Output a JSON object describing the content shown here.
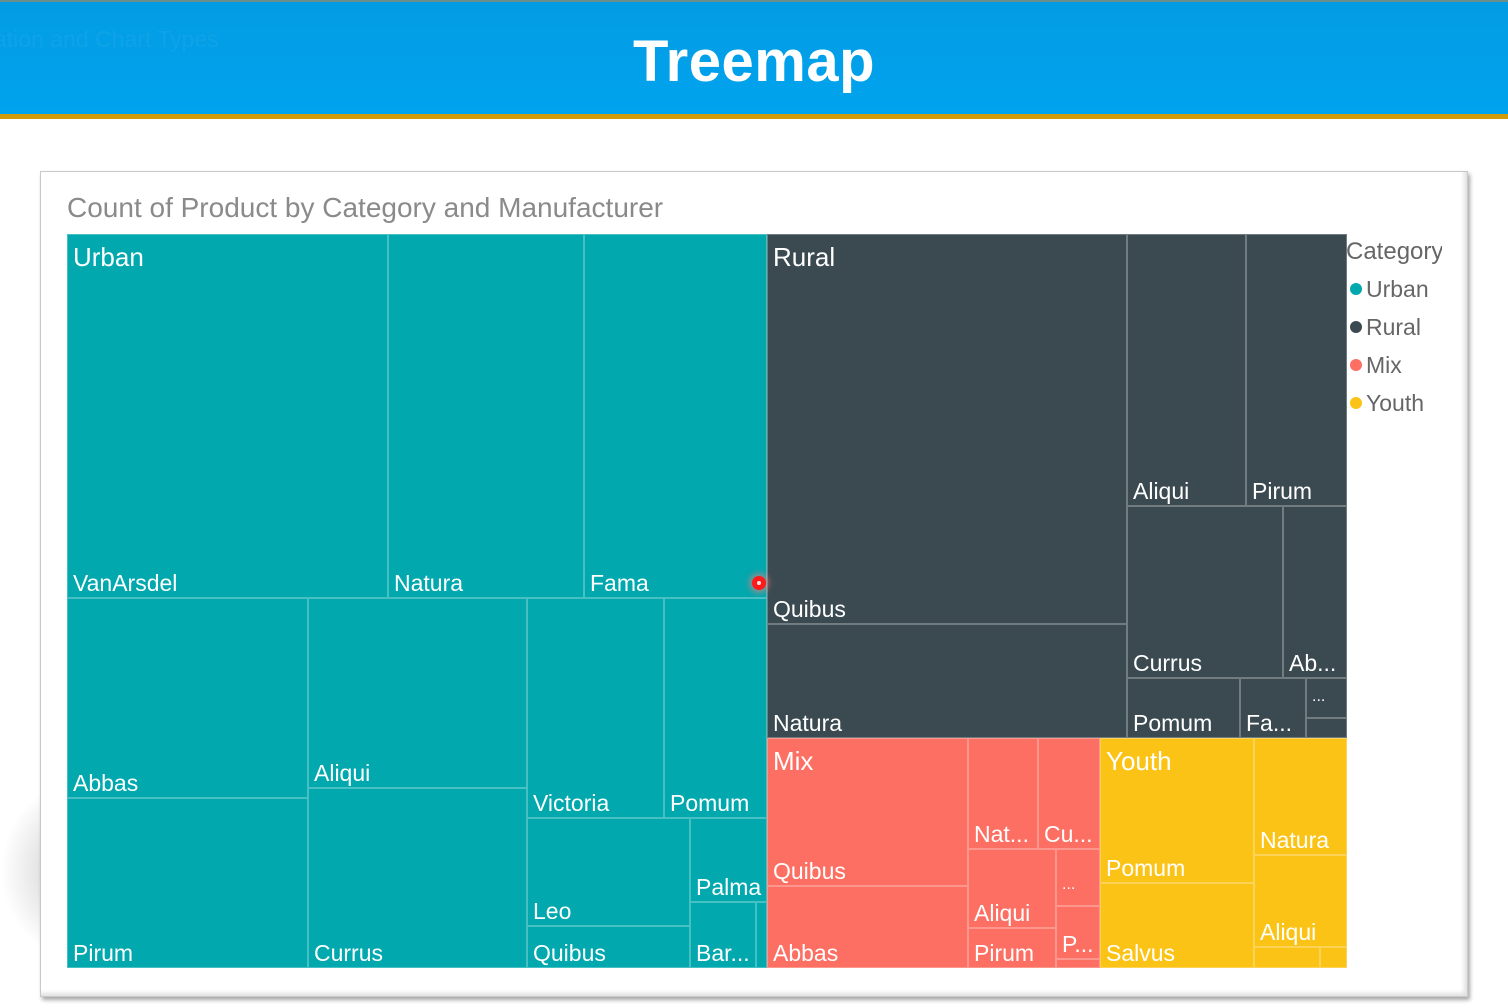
{
  "banner": {
    "title": "Treemap",
    "ghost_text": "ation and Chart Types"
  },
  "colors": {
    "banner": "#01a0e9",
    "banner_rule": "#d39a09",
    "Urban": "#01a8ae",
    "Rural": "#3b4a51",
    "Mix": "#fd6f62",
    "Youth": "#fcc317"
  },
  "chart_data": {
    "type": "treemap",
    "title": "Count of Product by Category and Manufacturer",
    "measure": "Count of Product",
    "group_field": "Category",
    "legend": {
      "title": "Category",
      "position": "right",
      "items": [
        "Urban",
        "Rural",
        "Mix",
        "Youth"
      ]
    },
    "groups": [
      {
        "name": "Urban",
        "children": [
          "VanArsdel",
          "Natura",
          "Fama",
          "Abbas",
          "Pirum",
          "Aliqui",
          "Currus",
          "Victoria",
          "Pomum",
          "Leo",
          "Quibus",
          "Palma",
          "Bar..."
        ]
      },
      {
        "name": "Rural",
        "children": [
          "Quibus",
          "Natura",
          "Aliqui",
          "Pirum",
          "Currus",
          "Ab...",
          "Pomum",
          "Fa...",
          "...",
          ""
        ]
      },
      {
        "name": "Mix",
        "children": [
          "Quibus",
          "Abbas",
          "Nat...",
          "Cu...",
          "Aliqui",
          "Pirum",
          "...",
          "P...",
          ""
        ]
      },
      {
        "name": "Youth",
        "children": [
          "Pomum",
          "Salvus",
          "Natura",
          "Aliqui",
          "",
          ""
        ]
      }
    ]
  }
}
